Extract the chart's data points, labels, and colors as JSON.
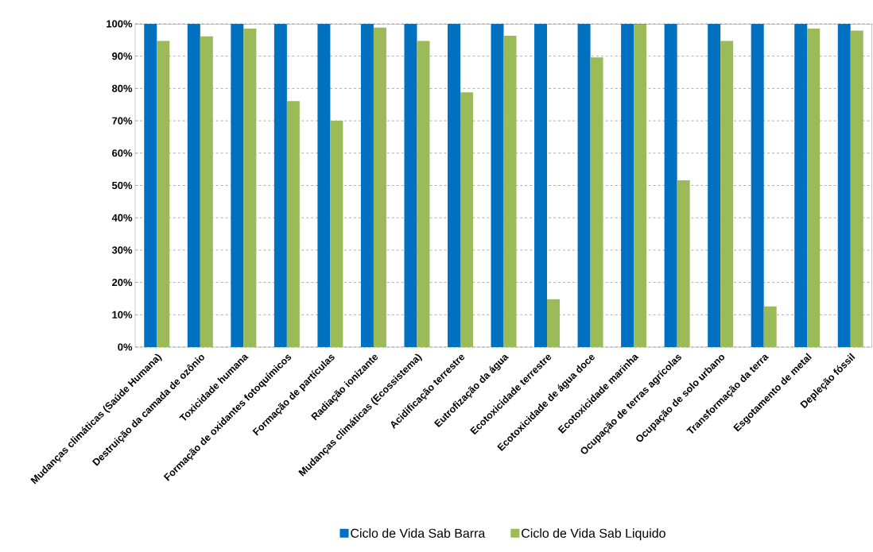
{
  "chart_data": {
    "type": "bar",
    "categories": [
      "Mudanças climáticas (Saúde Humana)",
      "Destruição da camada de ozônio",
      "Toxicidade humana",
      "Formação de oxidantes fotoquímicos",
      "Formação de partículas",
      "Radiação ionizante",
      "Mudanças climáticas (Ecossistema)",
      "Acidificação terrestre",
      "Eutrofização da água",
      "Ecotoxicidade terrestre",
      "Ecotoxicidade de água doce",
      "Ecotoxicidade marinha",
      "Ocupação de terras agrícolas",
      "Ocupação de solo urbano",
      "Transformação da terra",
      "Esgotamento de metal",
      "Depleção fóssil"
    ],
    "series": [
      {
        "name": "Ciclo de Vida Sab Barra",
        "color": "#0070c0",
        "values": [
          100,
          100,
          100,
          100,
          100,
          100,
          100,
          100,
          100,
          100,
          100,
          100,
          100,
          100,
          100,
          100,
          100
        ]
      },
      {
        "name": "Ciclo de Vida Sab Liquido",
        "color": "#9bbb59",
        "values": [
          94.7,
          96.1,
          98.5,
          76.1,
          70,
          98.8,
          94.7,
          78.8,
          96.3,
          14.8,
          89.6,
          100,
          51.6,
          94.7,
          12.6,
          98.5,
          97.9
        ]
      }
    ],
    "ylim": [
      0,
      100
    ],
    "yticks": [
      {
        "value": 0,
        "label": "0%"
      },
      {
        "value": 10,
        "label": "10%"
      },
      {
        "value": 20,
        "label": "20%"
      },
      {
        "value": 30,
        "label": "30%"
      },
      {
        "value": 40,
        "label": "40%"
      },
      {
        "value": 50,
        "label": "50%"
      },
      {
        "value": 60,
        "label": "60%"
      },
      {
        "value": 70,
        "label": "70%"
      },
      {
        "value": 80,
        "label": "80%"
      },
      {
        "value": 90,
        "label": "90%"
      },
      {
        "value": 100,
        "label": "100%"
      }
    ],
    "grid": "y",
    "legend": "bottom"
  }
}
